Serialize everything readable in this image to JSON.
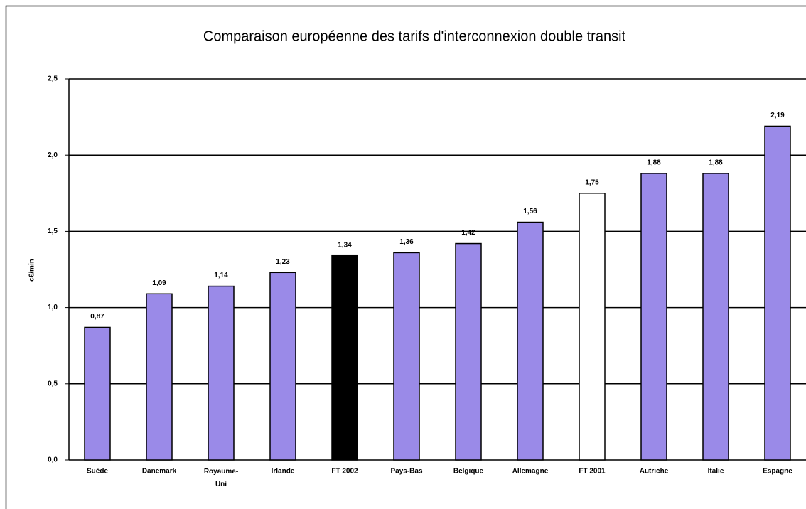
{
  "chart_data": {
    "type": "bar",
    "title": "Comparaison européenne des tarifs d'interconnexion double transit",
    "y_label": "c€/min",
    "categories": [
      "Suède",
      "Danemark",
      "Royaume-\nUni",
      "Irlande",
      "FT 2002",
      "Pays-Bas",
      "Belgique",
      "Allemagne",
      "FT 2001",
      "Autriche",
      "Italie",
      "Espagne"
    ],
    "values": [
      0.87,
      1.09,
      1.14,
      1.23,
      1.34,
      1.36,
      1.42,
      1.56,
      1.75,
      1.88,
      1.88,
      2.19
    ],
    "value_labels": [
      "0,87",
      "1,09",
      "1,14",
      "1,23",
      "1,34",
      "1,36",
      "1,42",
      "1,56",
      "1,75",
      "1,88",
      "1,88",
      "2,19"
    ],
    "colors": [
      "#9a8ae8",
      "#9a8ae8",
      "#9a8ae8",
      "#9a8ae8",
      "#000000",
      "#9a8ae8",
      "#9a8ae8",
      "#9a8ae8",
      "#ffffff",
      "#9a8ae8",
      "#9a8ae8",
      "#9a8ae8"
    ],
    "ylim": [
      0,
      2.5
    ],
    "yticks": [
      {
        "value": 0,
        "label": "0,0"
      },
      {
        "value": 0.5,
        "label": "0,5"
      },
      {
        "value": 1,
        "label": "1,0"
      },
      {
        "value": 1.5,
        "label": "1,5"
      },
      {
        "value": 2,
        "label": "2,0"
      },
      {
        "value": 2.5,
        "label": "2,5"
      }
    ],
    "grid": true
  }
}
